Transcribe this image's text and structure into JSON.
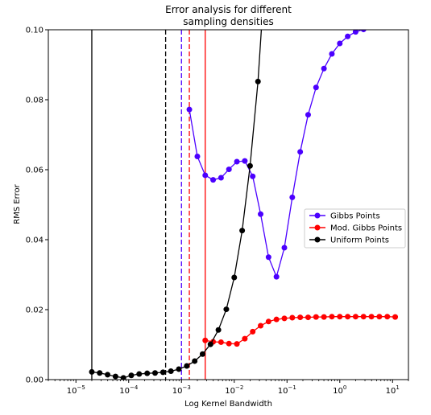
{
  "chart_data": {
    "type": "line",
    "title_lines": [
      "Error analysis for different",
      "sampling densities"
    ],
    "xlabel": "Log Kernel Bandwidth",
    "ylabel": "RMS Error",
    "xscale": "log",
    "xlim": [
      3e-06,
      20
    ],
    "ylim": [
      0,
      0.1
    ],
    "grid": false,
    "legend_placement": "center-right",
    "y_ticks": [
      "0.00",
      "0.02",
      "0.04",
      "0.06",
      "0.08",
      "0.10"
    ],
    "y_tick_values": [
      0,
      0.02,
      0.04,
      0.06,
      0.08,
      0.1
    ],
    "x_ticks": [
      {
        "value": 1e-05,
        "base": "10",
        "exp": "−5"
      },
      {
        "value": 0.0001,
        "base": "10",
        "exp": "−4"
      },
      {
        "value": 0.001,
        "base": "10",
        "exp": "−3"
      },
      {
        "value": 0.01,
        "base": "10",
        "exp": "−2"
      },
      {
        "value": 0.1,
        "base": "10",
        "exp": "−1"
      },
      {
        "value": 1,
        "base": "10",
        "exp": "0"
      },
      {
        "value": 10,
        "base": "10",
        "exp": "1"
      }
    ],
    "series": [
      {
        "name": "Gibbs Points",
        "color": "#4b00ff",
        "line_color": "#4b00ff",
        "x": [
          0.00141,
          0.002,
          0.00282,
          0.00398,
          0.00562,
          0.00794,
          0.01122,
          0.01585,
          0.02239,
          0.03162,
          0.04467,
          0.0631,
          0.08913,
          0.12589,
          0.17783,
          0.25119,
          0.35481,
          0.50119,
          0.70795,
          1.0,
          1.41254,
          1.99526,
          2.81838,
          3.98107
        ],
        "y": [
          0.0772,
          0.0638,
          0.0584,
          0.0571,
          0.0577,
          0.0601,
          0.0623,
          0.0625,
          0.0581,
          0.0473,
          0.035,
          0.0294,
          0.0377,
          0.0521,
          0.0651,
          0.0757,
          0.0835,
          0.0889,
          0.0931,
          0.0961,
          0.0981,
          0.0994,
          0.1001,
          0.1008
        ]
      },
      {
        "name": "Mod. Gibbs Points",
        "color": "#ff0000",
        "line_color": "#ff0000",
        "x": [
          0.00282,
          0.00398,
          0.00562,
          0.00794,
          0.01122,
          0.01585,
          0.02239,
          0.03162,
          0.04467,
          0.0631,
          0.08913,
          0.12589,
          0.17783,
          0.25119,
          0.35481,
          0.50119,
          0.70795,
          1.0,
          1.41254,
          1.99526,
          2.81838,
          3.98107,
          5.62341,
          7.94328,
          11.22018
        ],
        "y": [
          0.0112,
          0.0108,
          0.0107,
          0.0103,
          0.0102,
          0.0117,
          0.0137,
          0.0154,
          0.0166,
          0.0172,
          0.0175,
          0.0177,
          0.0178,
          0.0178,
          0.0179,
          0.0179,
          0.018,
          0.018,
          0.018,
          0.018,
          0.018,
          0.018,
          0.018,
          0.018,
          0.0179
        ]
      },
      {
        "name": "Uniform Points",
        "color": "#000000",
        "line_color": "#000000",
        "x": [
          2e-05,
          2.82e-05,
          3.98e-05,
          5.62e-05,
          7.94e-05,
          0.000112,
          0.000158,
          0.000224,
          0.000316,
          0.000447,
          0.000631,
          0.000891,
          0.00126,
          0.00178,
          0.00251,
          0.00355,
          0.00501,
          0.00708,
          0.01,
          0.01413,
          0.01995,
          0.02818,
          0.03981
        ],
        "y": [
          0.0022,
          0.0019,
          0.0014,
          0.0009,
          0.0005,
          0.0012,
          0.0016,
          0.0018,
          0.0019,
          0.0021,
          0.0024,
          0.003,
          0.0039,
          0.0053,
          0.0073,
          0.0101,
          0.0142,
          0.0201,
          0.0292,
          0.0426,
          0.0611,
          0.0852,
          0.12
        ]
      }
    ],
    "vertical_lines": [
      {
        "x": 2e-05,
        "color": "#000000",
        "style": "solid"
      },
      {
        "x": 0.000501,
        "color": "#000000",
        "style": "dashed"
      },
      {
        "x": 0.001,
        "color": "#4b00ff",
        "style": "dashed"
      },
      {
        "x": 0.00141,
        "color": "#ff0000",
        "style": "dashed"
      },
      {
        "x": 0.00282,
        "color": "#ff0000",
        "style": "solid"
      }
    ]
  }
}
